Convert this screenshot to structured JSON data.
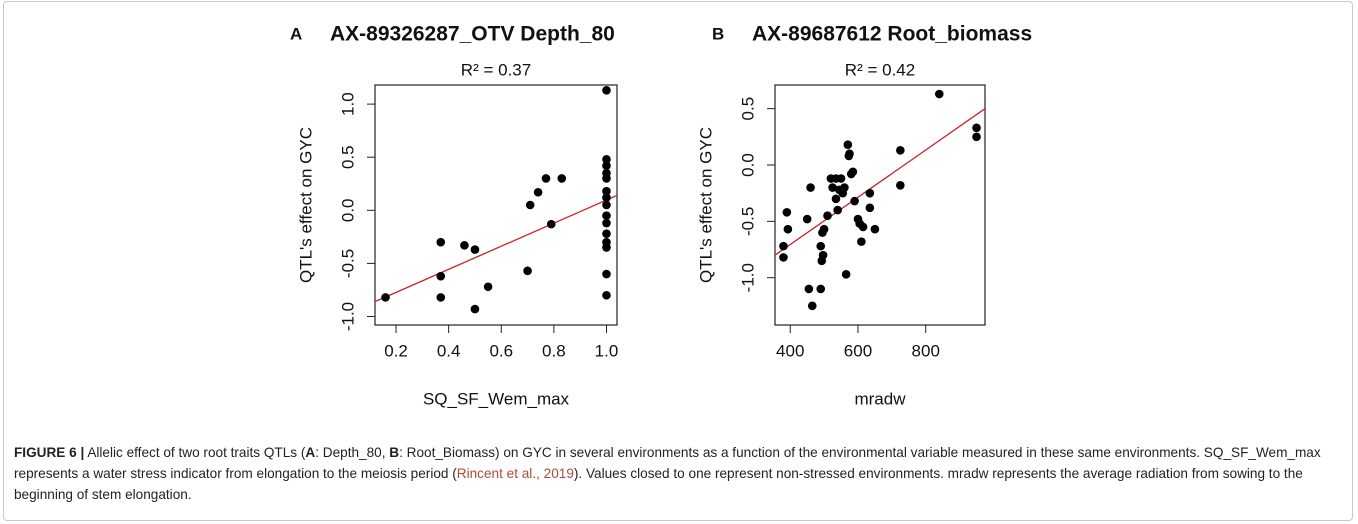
{
  "chart_data": [
    {
      "type": "scatter",
      "panel_label": "A",
      "title": "AX-89326287_OTV Depth_80",
      "subtitle": "R² = 0.37",
      "x_label": "SQ_SF_Wem_max",
      "y_label": "QTL's effect on GYC",
      "color": "#000000",
      "x": [
        0.16,
        0.37,
        0.37,
        0.37,
        0.46,
        0.5,
        0.5,
        0.55,
        0.7,
        0.71,
        0.74,
        0.77,
        0.79,
        0.83,
        1.0,
        1.0,
        1.0,
        1.0,
        1.0,
        1.0,
        1.0,
        1.0,
        1.0,
        1.0,
        1.0,
        1.0,
        1.0,
        1.0,
        1.0
      ],
      "values": [
        -0.82,
        -0.3,
        -0.62,
        -0.82,
        -0.33,
        -0.37,
        -0.93,
        -0.72,
        -0.57,
        0.05,
        0.17,
        0.3,
        -0.13,
        0.3,
        1.13,
        0.48,
        0.42,
        0.35,
        0.3,
        0.18,
        0.12,
        0.05,
        -0.05,
        -0.12,
        -0.22,
        -0.3,
        -0.35,
        -0.6,
        -0.8
      ],
      "fit_line": {
        "color": "#cc2222",
        "x": [
          0.12,
          1.04
        ],
        "y": [
          -0.86,
          0.14
        ]
      },
      "xlim": [
        0.12,
        1.04
      ],
      "ylim": [
        -1.08,
        1.18
      ],
      "xticks": [
        0.2,
        0.4,
        0.6,
        0.8,
        {
          "value": 1.0,
          "label": "1.0"
        }
      ],
      "yticks": [
        {
          "value": -1.0,
          "label": "-1.0"
        },
        -0.5,
        {
          "value": 0.0,
          "label": "0.0"
        },
        0.5,
        {
          "value": 1.0,
          "label": "1.0"
        }
      ]
    },
    {
      "type": "scatter",
      "panel_label": "B",
      "title": "AX-89687612 Root_biomass",
      "subtitle": "R² = 0.42",
      "x_label": "mradw",
      "y_label": "QTL's effect on GYC",
      "color": "#000000",
      "x": [
        380,
        380,
        390,
        393,
        450,
        455,
        460,
        465,
        490,
        490,
        493,
        495,
        497,
        500,
        510,
        520,
        525,
        535,
        535,
        540,
        545,
        550,
        555,
        560,
        565,
        570,
        573,
        575,
        580,
        585,
        590,
        600,
        605,
        610,
        615,
        635,
        635,
        650,
        725,
        725,
        840,
        950,
        950
      ],
      "values": [
        -0.72,
        -0.82,
        -0.42,
        -0.57,
        -0.48,
        -1.1,
        -0.2,
        -1.25,
        -1.1,
        -0.72,
        -0.85,
        -0.6,
        -0.8,
        -0.57,
        -0.45,
        -0.12,
        -0.2,
        -0.12,
        -0.3,
        -0.4,
        -0.22,
        -0.12,
        -0.25,
        -0.2,
        -0.97,
        0.18,
        0.08,
        0.1,
        -0.08,
        -0.06,
        -0.32,
        -0.48,
        -0.52,
        -0.68,
        -0.55,
        -0.25,
        -0.38,
        -0.57,
        0.13,
        -0.18,
        0.63,
        0.33,
        0.25
      ],
      "fit_line": {
        "color": "#cc2222",
        "x": [
          355,
          975
        ],
        "y": [
          -0.8,
          0.5
        ]
      },
      "xlim": [
        355,
        975
      ],
      "ylim": [
        -1.42,
        0.71
      ],
      "xticks": [
        400,
        600,
        800
      ],
      "yticks": [
        {
          "value": -1.0,
          "label": "-1.0"
        },
        -0.5,
        {
          "value": 0.0,
          "label": "0.0"
        },
        0.5
      ]
    }
  ],
  "caption": {
    "label": "FIGURE 6 |",
    "segments": [
      "Allelic effect of two root traits QTLs (",
      "A",
      ": Depth_80, ",
      "B",
      ": Root_Biomass) on GYC in several environments as a function of the environmental variable measured in these same environments. SQ_SF_Wem_max represents a water stress indicator from elongation to the meiosis period (",
      "Rincent et al., 2019",
      "). Values closed to one represent non-stressed environments. mradw represents the average radiation from sowing to the beginning of stem elongation."
    ]
  }
}
